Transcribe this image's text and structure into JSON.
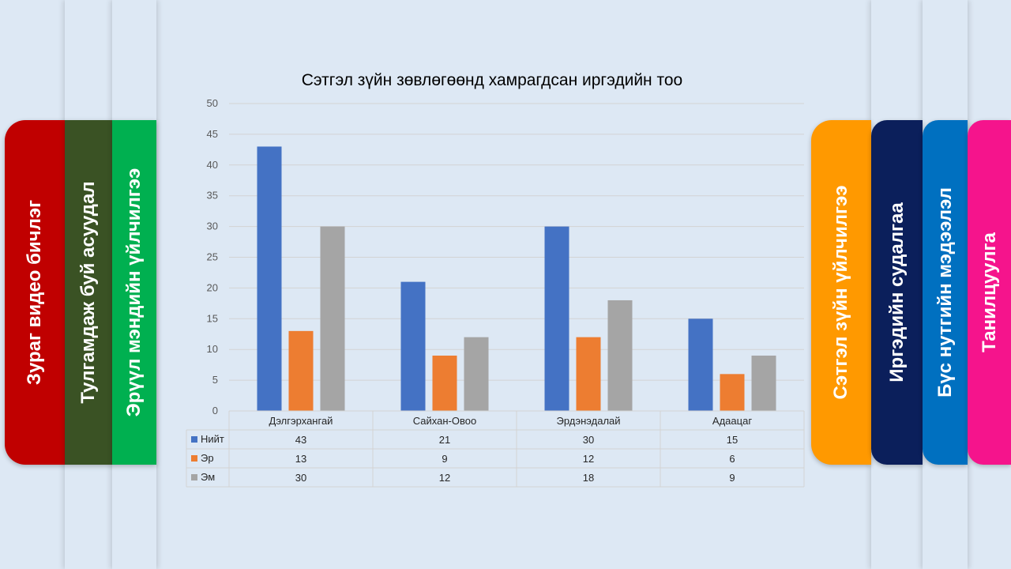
{
  "left_tabs": [
    {
      "label": "Зураг видео бичлэг",
      "color": "#c00000"
    },
    {
      "label": "Тулгамдаж буй асуудал",
      "color": "#3a5224"
    },
    {
      "label": "Эрүүл мэндийн үйлчилгээ",
      "color": "#00b050"
    }
  ],
  "right_tabs": [
    {
      "label": "Сэтгэл зүйн үйлчилгээ",
      "color": "#ff9900"
    },
    {
      "label": "Иргэдийн судалгаа",
      "color": "#0b1f5b"
    },
    {
      "label": "Бүс нутгийн мэдээлэл",
      "color": "#0070c0"
    },
    {
      "label": "Танилцуулга",
      "color": "#f5148c"
    }
  ],
  "chart_data": {
    "type": "bar",
    "title": "Сэтгэл зүйн зөвлөгөөнд хамрагдсан иргэдийн тоо",
    "categories": [
      "Дэлгэрхангай",
      "Сайхан-Овоо",
      "Эрдэнэдалай",
      "Адаацаг"
    ],
    "series": [
      {
        "name": "Нийт",
        "values": [
          43,
          21,
          30,
          15
        ],
        "color": "#4472c4"
      },
      {
        "name": "Эр",
        "values": [
          13,
          9,
          12,
          6
        ],
        "color": "#ed7d31"
      },
      {
        "name": "Эм",
        "values": [
          30,
          12,
          18,
          9
        ],
        "color": "#a5a5a5"
      }
    ],
    "ylim": [
      0,
      50
    ],
    "yticks": [
      0,
      5,
      10,
      15,
      20,
      25,
      30,
      35,
      40,
      45,
      50
    ],
    "grid": true,
    "data_table": true
  }
}
